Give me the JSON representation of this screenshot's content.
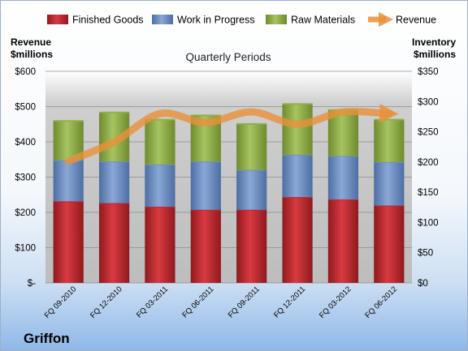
{
  "chart_data": {
    "type": "bar",
    "stacked": true,
    "title": "Quarterly Periods",
    "company": "Griffon",
    "left_axis_label": [
      "Revenue",
      "$millions"
    ],
    "right_axis_label": [
      "Inventory",
      "$millions"
    ],
    "left_ticks": [
      "$-",
      "$100",
      "$200",
      "$300",
      "$400",
      "$500",
      "$600"
    ],
    "right_ticks": [
      "$0",
      "$50",
      "$100",
      "$150",
      "$200",
      "$250",
      "$300",
      "$350"
    ],
    "left_ylim": [
      0,
      600
    ],
    "right_ylim": [
      0,
      350
    ],
    "categories": [
      "FQ 09-2010",
      "FQ 12-2010",
      "FQ 03-2011",
      "FQ 06-2011",
      "FQ 09-2011",
      "FQ 12-2011",
      "FQ 03-2012",
      "FQ 06-2012"
    ],
    "series": [
      {
        "name": "Finished Goods",
        "axis": "right",
        "color": "#c0262d",
        "values": [
          135,
          132,
          126,
          121,
          121,
          142,
          138,
          128
        ]
      },
      {
        "name": "Work in Progress",
        "axis": "right",
        "color": "#6e8fc2",
        "values": [
          68,
          69,
          70,
          80,
          66,
          70,
          72,
          72
        ]
      },
      {
        "name": "Raw Materials",
        "axis": "right",
        "color": "#8faf45",
        "values": [
          65,
          81,
          74,
          76,
          76,
          84,
          76,
          70
        ]
      },
      {
        "name": "Revenue",
        "axis": "left",
        "type": "line",
        "color": "#e8913a",
        "values": [
          345,
          400,
          480,
          455,
          485,
          450,
          485,
          480
        ]
      }
    ],
    "legend_position": "top",
    "grid": true
  }
}
